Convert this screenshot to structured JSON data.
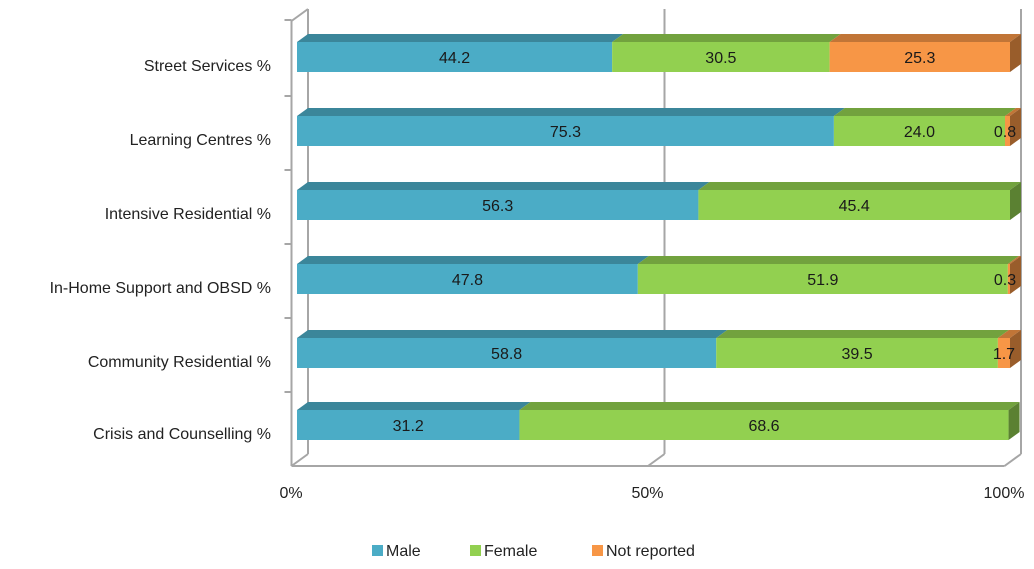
{
  "chart_data": {
    "type": "bar",
    "orientation": "horizontal",
    "stacked": "percent",
    "three_d": true,
    "title": "",
    "xlabel": "",
    "ylabel": "",
    "categories": [
      "Street Services %",
      "Learning Centres %",
      "Intensive Residential %",
      "In-Home Support and OBSD %",
      "Community Residential %",
      "Crisis and Counselling %"
    ],
    "series": [
      {
        "name": "Male",
        "color": "#4BACC6",
        "values": [
          44.2,
          75.3,
          56.3,
          47.8,
          58.8,
          31.2
        ]
      },
      {
        "name": "Female",
        "color": "#92D050",
        "values": [
          30.5,
          24.0,
          45.4,
          51.9,
          39.5,
          68.6
        ]
      },
      {
        "name": "Not reported",
        "color": "#F79646",
        "values": [
          25.3,
          0.8,
          null,
          0.3,
          1.7,
          null
        ]
      }
    ],
    "data_labels": [
      [
        "44.2",
        "75.3",
        "56.3",
        "47.8",
        "58.8",
        "31.2"
      ],
      [
        "30.5",
        "24.0",
        "45.4",
        "51.9",
        "39.5",
        "68.6"
      ],
      [
        "25.3",
        "0.8",
        "",
        "0.3",
        "1.7",
        ""
      ]
    ],
    "xticks": [
      "0%",
      "50%",
      "100%"
    ],
    "xlim": [
      0,
      100
    ],
    "grid": true,
    "legend_position": "bottom"
  }
}
